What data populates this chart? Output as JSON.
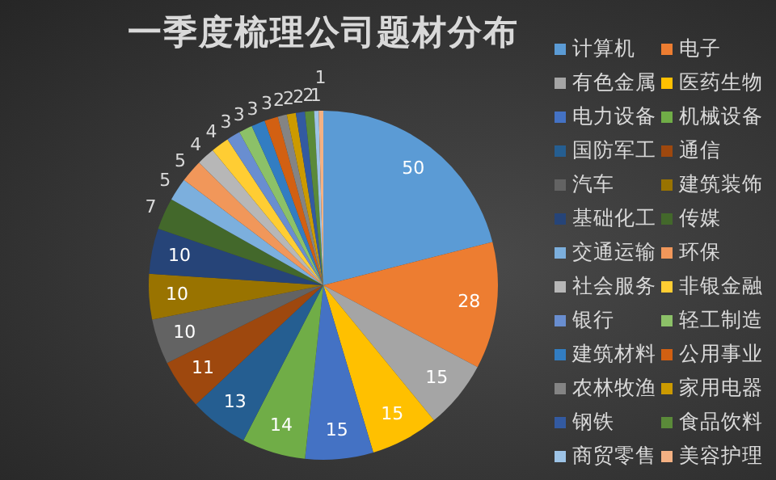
{
  "chart_data": {
    "type": "pie",
    "title": "一季度梳理公司题材分布",
    "categories": [
      "计算机",
      "电子",
      "有色金属",
      "医药生物",
      "电力设备",
      "机械设备",
      "国防军工",
      "通信",
      "汽车",
      "建筑装饰",
      "基础化工",
      "传媒",
      "交通运输",
      "环保",
      "社会服务",
      "非银金融",
      "银行",
      "轻工制造",
      "建筑材料",
      "公用事业",
      "农林牧渔",
      "家用电器",
      "钢铁",
      "食品饮料",
      "商贸零售",
      "美容护理"
    ],
    "values": [
      50,
      28,
      15,
      15,
      15,
      14,
      13,
      11,
      10,
      10,
      10,
      7,
      5,
      5,
      4,
      4,
      3,
      3,
      3,
      3,
      2,
      2,
      2,
      2,
      1,
      1
    ],
    "colors": [
      "#5b9bd5",
      "#ed7d31",
      "#a5a5a5",
      "#ffc000",
      "#4472c4",
      "#70ad47",
      "#255e91",
      "#9e480e",
      "#636363",
      "#997300",
      "#264478",
      "#43682b",
      "#7cafdd",
      "#f1975a",
      "#b7b7b7",
      "#ffcd33",
      "#698ed0",
      "#8cc168",
      "#327dc2",
      "#d26012",
      "#848484",
      "#cc9a00",
      "#335aa1",
      "#5a8a39",
      "#9dc3e6",
      "#f4b183"
    ],
    "data_labels": true,
    "legend": "right"
  }
}
